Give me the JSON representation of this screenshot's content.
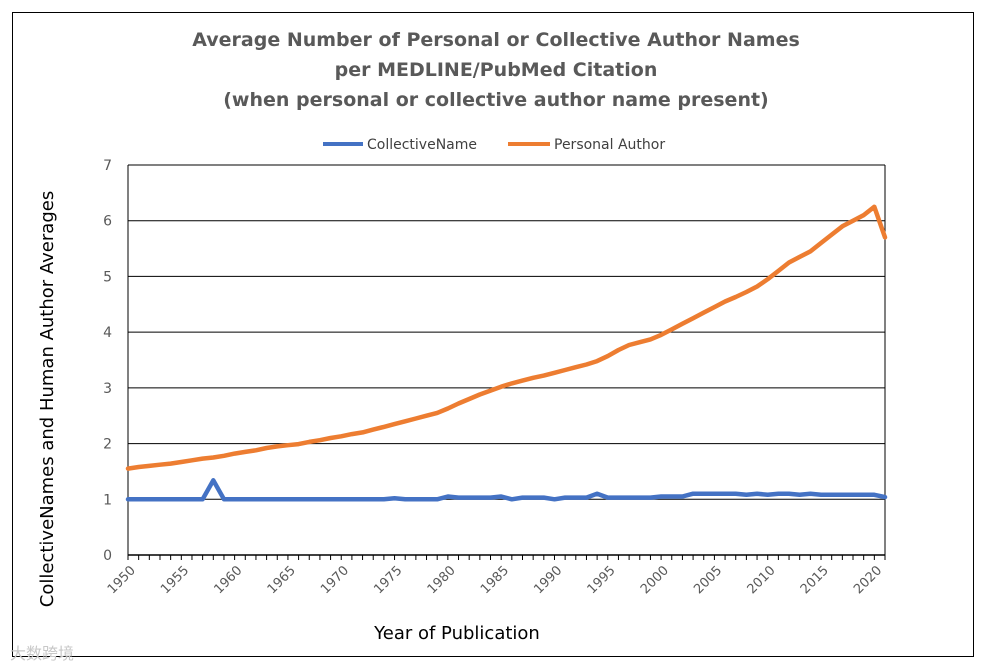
{
  "chart_data": {
    "type": "line",
    "title": [
      "Average Number of Personal or Collective Author Names",
      "per MEDLINE/PubMed Citation",
      "(when personal or collective author name present)"
    ],
    "xlabel": "Year of Publication",
    "ylabel": "CollectiveNames  and  Human  Author  Averages",
    "xlim": [
      1950,
      2021
    ],
    "ylim": [
      0,
      7
    ],
    "x_ticks": [
      "1950",
      "1955",
      "1960",
      "1965",
      "1970",
      "1975",
      "1980",
      "1985",
      "1990",
      "1995",
      "2000",
      "2005",
      "2010",
      "2015",
      "2020"
    ],
    "y_ticks": [
      "0",
      "1",
      "2",
      "3",
      "4",
      "5",
      "6",
      "7"
    ],
    "grid": "horizontal",
    "legend_position": "top",
    "x": [
      1950,
      1951,
      1952,
      1953,
      1954,
      1955,
      1956,
      1957,
      1958,
      1959,
      1960,
      1961,
      1962,
      1963,
      1964,
      1965,
      1966,
      1967,
      1968,
      1969,
      1970,
      1971,
      1972,
      1973,
      1974,
      1975,
      1976,
      1977,
      1978,
      1979,
      1980,
      1981,
      1982,
      1983,
      1984,
      1985,
      1986,
      1987,
      1988,
      1989,
      1990,
      1991,
      1992,
      1993,
      1994,
      1995,
      1996,
      1997,
      1998,
      1999,
      2000,
      2001,
      2002,
      2003,
      2004,
      2005,
      2006,
      2007,
      2008,
      2009,
      2010,
      2011,
      2012,
      2013,
      2014,
      2015,
      2016,
      2017,
      2018,
      2019,
      2020,
      2021
    ],
    "series": [
      {
        "name": "CollectiveName",
        "color": "#4472c4",
        "values": [
          1.0,
          1.0,
          1.0,
          1.0,
          1.0,
          1.0,
          1.0,
          1.0,
          1.34,
          1.0,
          1.0,
          1.0,
          1.0,
          1.0,
          1.0,
          1.0,
          1.0,
          1.0,
          1.0,
          1.0,
          1.0,
          1.0,
          1.0,
          1.0,
          1.0,
          1.02,
          1.0,
          1.0,
          1.0,
          1.0,
          1.05,
          1.03,
          1.03,
          1.03,
          1.03,
          1.05,
          1.0,
          1.03,
          1.03,
          1.03,
          1.0,
          1.03,
          1.03,
          1.03,
          1.1,
          1.03,
          1.03,
          1.03,
          1.03,
          1.03,
          1.05,
          1.05,
          1.05,
          1.1,
          1.1,
          1.1,
          1.1,
          1.1,
          1.08,
          1.1,
          1.08,
          1.1,
          1.1,
          1.08,
          1.1,
          1.08,
          1.08,
          1.08,
          1.08,
          1.08,
          1.08,
          1.04
        ]
      },
      {
        "name": "Personal Author",
        "color": "#ed7d31",
        "values": [
          1.55,
          1.58,
          1.6,
          1.62,
          1.64,
          1.67,
          1.7,
          1.73,
          1.75,
          1.78,
          1.82,
          1.85,
          1.88,
          1.92,
          1.95,
          1.97,
          1.99,
          2.03,
          2.06,
          2.1,
          2.13,
          2.17,
          2.2,
          2.25,
          2.3,
          2.35,
          2.4,
          2.45,
          2.5,
          2.55,
          2.63,
          2.72,
          2.8,
          2.88,
          2.95,
          3.02,
          3.08,
          3.13,
          3.18,
          3.22,
          3.27,
          3.32,
          3.37,
          3.42,
          3.48,
          3.57,
          3.68,
          3.77,
          3.82,
          3.87,
          3.95,
          4.05,
          4.15,
          4.25,
          4.35,
          4.45,
          4.55,
          4.63,
          4.72,
          4.82,
          4.95,
          5.1,
          5.25,
          5.35,
          5.45,
          5.6,
          5.75,
          5.9,
          6.0,
          6.1,
          6.25,
          5.7
        ]
      }
    ]
  },
  "watermark": "大数跨境"
}
